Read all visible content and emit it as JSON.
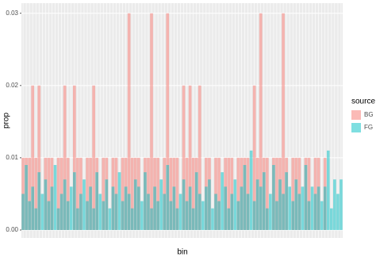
{
  "chart_data": {
    "type": "bar",
    "x_label": "bin",
    "y_label": "prop",
    "legend_title": "source",
    "legend_position": "right",
    "categories": [
      null,
      null,
      null,
      null,
      null,
      null,
      null,
      null,
      null,
      null,
      null,
      null,
      null,
      null,
      null,
      null,
      null,
      null,
      null,
      null,
      null,
      null,
      null,
      null,
      null,
      null,
      null,
      null,
      null,
      null,
      null,
      null,
      null,
      null,
      null,
      null,
      null,
      null,
      null,
      null,
      null,
      null,
      null,
      null,
      null,
      null,
      null,
      null,
      null,
      null,
      null,
      null,
      null,
      null,
      null,
      null,
      null,
      null,
      null,
      null,
      null,
      null,
      null,
      null,
      null,
      null,
      null,
      null,
      null,
      null,
      null,
      null,
      null,
      null,
      null,
      null,
      null,
      null,
      null,
      null,
      null,
      null,
      null,
      null,
      null,
      null,
      null,
      null,
      null,
      null,
      null,
      null,
      null,
      null,
      null,
      null,
      null,
      null,
      null,
      null
    ],
    "series": [
      {
        "name": "BG",
        "color": "#F8766D",
        "values": [
          0.01,
          0.01,
          0.01,
          0.02,
          0.01,
          0.02,
          0,
          0.01,
          0.01,
          0.01,
          0,
          0.01,
          0.01,
          0.02,
          0.01,
          0,
          0.02,
          0.01,
          0.01,
          0,
          0.01,
          0.01,
          0.02,
          0.01,
          0,
          0.01,
          0.01,
          0,
          0.01,
          0.01,
          0,
          0.01,
          0.01,
          0.03,
          0.01,
          0.01,
          0.01,
          0,
          0.01,
          0.01,
          0.03,
          0.01,
          0.01,
          0,
          0.01,
          0.03,
          0.01,
          0.01,
          0.01,
          0,
          0.02,
          0.01,
          0.02,
          0.01,
          0.01,
          0.02,
          0,
          0.01,
          0.01,
          0,
          0.01,
          0.01,
          0,
          0.01,
          0.01,
          0.01,
          0,
          0.01,
          0.01,
          0.01,
          0.01,
          0,
          0.02,
          0.01,
          0.03,
          0.01,
          0.01,
          0,
          0.01,
          0.01,
          0.01,
          0.03,
          0.01,
          0,
          0.01,
          0.01,
          0.01,
          0,
          0.01,
          0.01,
          0,
          0.01,
          0.01,
          0,
          0.01,
          0,
          0,
          0,
          0,
          0
        ]
      },
      {
        "name": "FG",
        "color": "#00BFC4",
        "values": [
          0.005,
          0.009,
          0.004,
          0.006,
          0.003,
          0.008,
          0.005,
          0.007,
          0.004,
          0.006,
          0.009,
          0.003,
          0.005,
          0.007,
          0.004,
          0.006,
          0.008,
          0.003,
          0.005,
          0.007,
          0.004,
          0.006,
          0.003,
          0.008,
          0.005,
          0.004,
          0.007,
          0.003,
          0.006,
          0.005,
          0.008,
          0.004,
          0.006,
          0.005,
          0.003,
          0.007,
          0.006,
          0.004,
          0.008,
          0.005,
          0.003,
          0.006,
          0.004,
          0.007,
          0.005,
          0.009,
          0.004,
          0.006,
          0.003,
          0.005,
          0.007,
          0.004,
          0.006,
          0.003,
          0.008,
          0.005,
          0.004,
          0.006,
          0.007,
          0.003,
          0.005,
          0.004,
          0.008,
          0.006,
          0.003,
          0.005,
          0.007,
          0.004,
          0.006,
          0.009,
          0.005,
          0.011,
          0.004,
          0.007,
          0.006,
          0.008,
          0.003,
          0.005,
          0.009,
          0.004,
          0.007,
          0.005,
          0.008,
          0.006,
          0.004,
          0.007,
          0.005,
          0.006,
          0.009,
          0.004,
          0.006,
          0.005,
          0.006,
          0.004,
          0.006,
          0.011,
          0.003,
          0.007,
          0.005,
          0.007
        ]
      }
    ],
    "ylim": [
      -0.0011,
      0.0314
    ],
    "yticks": [
      {
        "value": 0,
        "label": "0.00"
      },
      {
        "value": 0.01,
        "label": "0.01"
      },
      {
        "value": 0.02,
        "label": "0.02"
      },
      {
        "value": 0.03,
        "label": "0.03"
      }
    ],
    "grid": true
  }
}
